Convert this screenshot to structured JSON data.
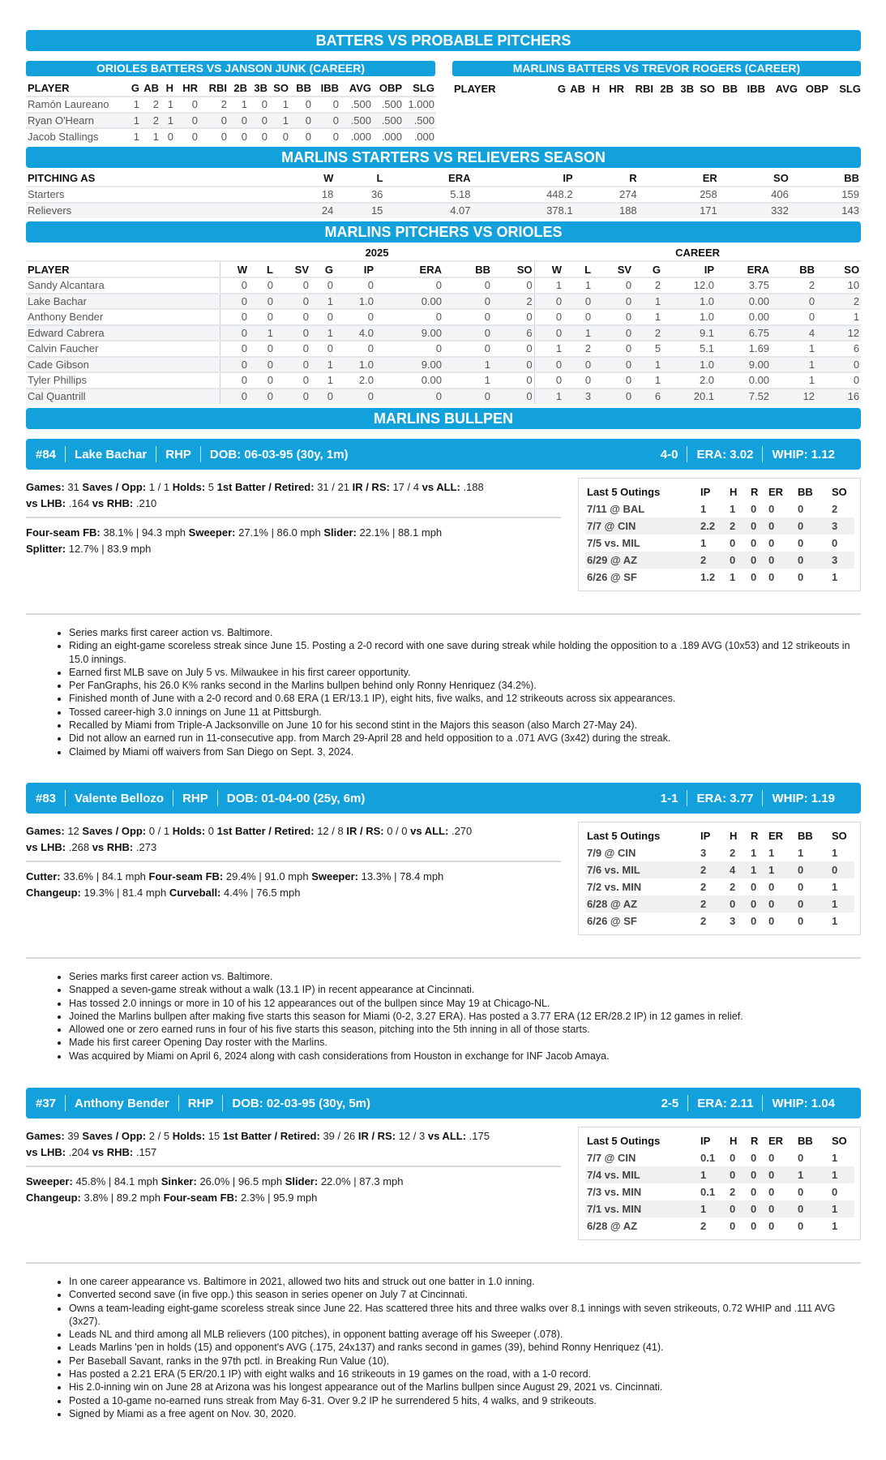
{
  "batters_vs_probables": {
    "title": "BATTERS VS PROBABLE PITCHERS",
    "orioles": {
      "title": "ORIOLES BATTERS VS JANSON JUNK (CAREER)",
      "columns": [
        "PLAYER",
        "G",
        "AB",
        "H",
        "HR",
        "RBI",
        "2B",
        "3B",
        "SO",
        "BB",
        "IBB",
        "AVG",
        "OBP",
        "SLG"
      ],
      "rows": [
        [
          "Ramón Laureano",
          "1",
          "2",
          "1",
          "0",
          "2",
          "1",
          "0",
          "1",
          "0",
          "0",
          ".500",
          ".500",
          "1.000"
        ],
        [
          "Ryan O'Hearn",
          "1",
          "2",
          "1",
          "0",
          "0",
          "0",
          "0",
          "1",
          "0",
          "0",
          ".500",
          ".500",
          ".500"
        ],
        [
          "Jacob Stallings",
          "1",
          "1",
          "0",
          "0",
          "0",
          "0",
          "0",
          "0",
          "0",
          "0",
          ".000",
          ".000",
          ".000"
        ]
      ]
    },
    "marlins": {
      "title": "MARLINS BATTERS VS TREVOR ROGERS (CAREER)",
      "columns": [
        "PLAYER",
        "G",
        "AB",
        "H",
        "HR",
        "RBI",
        "2B",
        "3B",
        "SO",
        "BB",
        "IBB",
        "AVG",
        "OBP",
        "SLG"
      ],
      "rows": []
    }
  },
  "starters_vs_relievers": {
    "title": "MARLINS STARTERS VS RELIEVERS SEASON",
    "columns": [
      "PITCHING AS",
      "W",
      "L",
      "ERA",
      "IP",
      "R",
      "ER",
      "SO",
      "BB"
    ],
    "rows": [
      [
        "Starters",
        "18",
        "36",
        "5.18",
        "448.2",
        "274",
        "258",
        "406",
        "159"
      ],
      [
        "Relievers",
        "24",
        "15",
        "4.07",
        "378.1",
        "188",
        "171",
        "332",
        "143"
      ]
    ]
  },
  "pitchers_vs_orioles": {
    "title": "MARLINS PITCHERS VS ORIOLES",
    "group_labels": [
      "2025",
      "CAREER"
    ],
    "columns": [
      "PLAYER",
      "W",
      "L",
      "SV",
      "G",
      "IP",
      "ERA",
      "BB",
      "SO",
      "W",
      "L",
      "SV",
      "G",
      "IP",
      "ERA",
      "BB",
      "SO"
    ],
    "rows": [
      [
        "Sandy Alcantara",
        "0",
        "0",
        "0",
        "0",
        "0",
        "0",
        "0",
        "0",
        "1",
        "1",
        "0",
        "2",
        "12.0",
        "3.75",
        "2",
        "10"
      ],
      [
        "Lake Bachar",
        "0",
        "0",
        "0",
        "1",
        "1.0",
        "0.00",
        "0",
        "2",
        "0",
        "0",
        "0",
        "1",
        "1.0",
        "0.00",
        "0",
        "2"
      ],
      [
        "Anthony Bender",
        "0",
        "0",
        "0",
        "0",
        "0",
        "0",
        "0",
        "0",
        "0",
        "0",
        "0",
        "1",
        "1.0",
        "0.00",
        "0",
        "1"
      ],
      [
        "Edward Cabrera",
        "0",
        "1",
        "0",
        "1",
        "4.0",
        "9.00",
        "0",
        "6",
        "0",
        "1",
        "0",
        "2",
        "9.1",
        "6.75",
        "4",
        "12"
      ],
      [
        "Calvin Faucher",
        "0",
        "0",
        "0",
        "0",
        "0",
        "0",
        "0",
        "0",
        "1",
        "2",
        "0",
        "5",
        "5.1",
        "1.69",
        "1",
        "6"
      ],
      [
        "Cade Gibson",
        "0",
        "0",
        "0",
        "1",
        "1.0",
        "9.00",
        "1",
        "0",
        "0",
        "0",
        "0",
        "1",
        "1.0",
        "9.00",
        "1",
        "0"
      ],
      [
        "Tyler Phillips",
        "0",
        "0",
        "0",
        "1",
        "2.0",
        "0.00",
        "1",
        "0",
        "0",
        "0",
        "0",
        "1",
        "2.0",
        "0.00",
        "1",
        "0"
      ],
      [
        "Cal Quantrill",
        "0",
        "0",
        "0",
        "0",
        "0",
        "0",
        "0",
        "0",
        "1",
        "3",
        "0",
        "6",
        "20.1",
        "7.52",
        "12",
        "16"
      ]
    ]
  },
  "bullpen": {
    "title": "MARLINS BULLPEN",
    "outing_columns": [
      "Last 5 Outings",
      "IP",
      "H",
      "R",
      "ER",
      "BB",
      "SO"
    ],
    "pitchers": [
      {
        "number": "#84",
        "name": "Lake Bachar",
        "throws": "RHP",
        "dob": "DOB: 06-03-95 (30y, 1m)",
        "record": "4-0",
        "era": "ERA: 3.02",
        "whip": "WHIP: 1.12",
        "stat_lines": [
          [
            {
              "label": "Games:",
              "value": "31"
            },
            {
              "label": "Saves / Opp:",
              "value": "1 / 1"
            },
            {
              "label": "Holds:",
              "value": "5"
            },
            {
              "label": "1st Batter / Retired:",
              "value": "31 / 21"
            },
            {
              "label": "IR / RS:",
              "value": "17 / 4"
            },
            {
              "label": "vs ALL:",
              "value": ".188"
            }
          ],
          [
            {
              "label": "vs LHB:",
              "value": ".164"
            },
            {
              "label": "vs RHB:",
              "value": ".210"
            }
          ]
        ],
        "pitch_lines": [
          [
            {
              "label": "Four-seam FB:",
              "value": "38.1% | 94.3 mph"
            },
            {
              "label": "Sweeper:",
              "value": "27.1% | 86.0 mph"
            },
            {
              "label": "Slider:",
              "value": "22.1% | 88.1 mph"
            }
          ],
          [
            {
              "label": "Splitter:",
              "value": "12.7% | 83.9 mph"
            }
          ]
        ],
        "outings": [
          [
            "7/11 @ BAL",
            "1",
            "1",
            "0",
            "0",
            "0",
            "2"
          ],
          [
            "7/7 @ CIN",
            "2.2",
            "2",
            "0",
            "0",
            "0",
            "3"
          ],
          [
            "7/5 vs. MIL",
            "1",
            "0",
            "0",
            "0",
            "0",
            "0"
          ],
          [
            "6/29 @ AZ",
            "2",
            "0",
            "0",
            "0",
            "0",
            "3"
          ],
          [
            "6/26 @ SF",
            "1.2",
            "1",
            "0",
            "0",
            "0",
            "1"
          ]
        ],
        "notes": [
          "Series marks first career action vs. Baltimore.",
          "Riding an eight-game scoreless streak since June 15. Posting a 2-0 record with one save during streak while holding the opposition to a .189 AVG (10x53) and 12 strikeouts in 15.0 innings.",
          "Earned first MLB save on July 5 vs. Milwaukee in his first career opportunity.",
          "Per FanGraphs, his 26.0 K% ranks second in the Marlins bullpen behind only Ronny Henriquez (34.2%).",
          "Finished month of June with a 2-0 record and 0.68 ERA (1 ER/13.1 IP), eight hits, five walks, and 12 strikeouts across six appearances.",
          "Tossed career-high 3.0 innings on June 11 at Pittsburgh.",
          "Recalled by Miami from Triple-A Jacksonville on June 10 for his second stint in the Majors this season (also March 27-May 24).",
          "Did not allow an earned run in 11-consecutive app. from March 29-April 28 and held opposition to a .071 AVG (3x42) during the streak.",
          "Claimed by Miami off waivers from San Diego on Sept. 3, 2024."
        ]
      },
      {
        "number": "#83",
        "name": "Valente Bellozo",
        "throws": "RHP",
        "dob": "DOB: 01-04-00 (25y, 6m)",
        "record": "1-1",
        "era": "ERA: 3.77",
        "whip": "WHIP: 1.19",
        "stat_lines": [
          [
            {
              "label": "Games:",
              "value": "12"
            },
            {
              "label": "Saves / Opp:",
              "value": "0 / 1"
            },
            {
              "label": "Holds:",
              "value": "0"
            },
            {
              "label": "1st Batter / Retired:",
              "value": "12 / 8"
            },
            {
              "label": "IR / RS:",
              "value": "0 / 0"
            },
            {
              "label": "vs ALL:",
              "value": ".270"
            }
          ],
          [
            {
              "label": "vs LHB:",
              "value": ".268"
            },
            {
              "label": "vs RHB:",
              "value": ".273"
            }
          ]
        ],
        "pitch_lines": [
          [
            {
              "label": "Cutter:",
              "value": "33.6% | 84.1 mph"
            },
            {
              "label": "Four-seam FB:",
              "value": "29.4% | 91.0 mph"
            },
            {
              "label": "Sweeper:",
              "value": "13.3% | 78.4 mph"
            }
          ],
          [
            {
              "label": "Changeup:",
              "value": "19.3% | 81.4 mph"
            },
            {
              "label": "Curveball:",
              "value": "4.4% | 76.5 mph"
            }
          ]
        ],
        "outings": [
          [
            "7/9 @ CIN",
            "3",
            "2",
            "1",
            "1",
            "1",
            "1"
          ],
          [
            "7/6 vs. MIL",
            "2",
            "4",
            "1",
            "1",
            "0",
            "0"
          ],
          [
            "7/2 vs. MIN",
            "2",
            "2",
            "0",
            "0",
            "0",
            "1"
          ],
          [
            "6/28 @ AZ",
            "2",
            "0",
            "0",
            "0",
            "0",
            "1"
          ],
          [
            "6/26 @ SF",
            "2",
            "3",
            "0",
            "0",
            "0",
            "1"
          ]
        ],
        "notes": [
          "Series marks first career action vs. Baltimore.",
          "Snapped a seven-game streak without a walk (13.1 IP) in recent appearance at Cincinnati.",
          "Has tossed 2.0 innings or more in 10 of his 12 appearances out of the bullpen since May 19 at Chicago-NL.",
          "Joined the Marlins bullpen after making five starts this season for Miami (0-2, 3.27 ERA). Has posted a 3.77 ERA (12 ER/28.2 IP) in 12 games in relief.",
          "Allowed one or zero earned runs in four of his five starts this season, pitching into the 5th inning in all of those starts.",
          "Made his first career Opening Day roster with the Marlins.",
          "Was acquired by Miami on April 6, 2024 along with cash considerations from Houston in exchange for INF Jacob Amaya."
        ]
      },
      {
        "number": "#37",
        "name": "Anthony Bender",
        "throws": "RHP",
        "dob": "DOB: 02-03-95 (30y, 5m)",
        "record": "2-5",
        "era": "ERA: 2.11",
        "whip": "WHIP: 1.04",
        "stat_lines": [
          [
            {
              "label": "Games:",
              "value": "39"
            },
            {
              "label": "Saves / Opp:",
              "value": "2 / 5"
            },
            {
              "label": "Holds:",
              "value": "15"
            },
            {
              "label": "1st Batter / Retired:",
              "value": "39 / 26"
            },
            {
              "label": "IR / RS:",
              "value": "12 / 3"
            },
            {
              "label": "vs ALL:",
              "value": ".175"
            }
          ],
          [
            {
              "label": "vs LHB:",
              "value": ".204"
            },
            {
              "label": "vs RHB:",
              "value": ".157"
            }
          ]
        ],
        "pitch_lines": [
          [
            {
              "label": "Sweeper:",
              "value": "45.8% | 84.1 mph"
            },
            {
              "label": "Sinker:",
              "value": "26.0% | 96.5 mph"
            },
            {
              "label": "Slider:",
              "value": "22.0% | 87.3 mph"
            }
          ],
          [
            {
              "label": "Changeup:",
              "value": "3.8% | 89.2 mph"
            },
            {
              "label": "Four-seam FB:",
              "value": "2.3% | 95.9 mph"
            }
          ]
        ],
        "outings": [
          [
            "7/7 @ CIN",
            "0.1",
            "0",
            "0",
            "0",
            "0",
            "1"
          ],
          [
            "7/4 vs. MIL",
            "1",
            "0",
            "0",
            "0",
            "1",
            "1"
          ],
          [
            "7/3 vs. MIN",
            "0.1",
            "2",
            "0",
            "0",
            "0",
            "0"
          ],
          [
            "7/1 vs. MIN",
            "1",
            "0",
            "0",
            "0",
            "0",
            "1"
          ],
          [
            "6/28 @ AZ",
            "2",
            "0",
            "0",
            "0",
            "0",
            "1"
          ]
        ],
        "notes": [
          "In one career appearance vs. Baltimore in 2021, allowed two hits and struck out one batter in 1.0 inning.",
          "Converted second save (in five opp.) this season in series opener on July 7 at Cincinnati.",
          "Owns a team-leading eight-game scoreless streak since June 22. Has scattered three hits and three walks over 8.1 innings with seven strikeouts, 0.72 WHIP and .111 AVG (3x27).",
          "Leads NL and third among all MLB relievers (100 pitches), in opponent batting average off his Sweeper (.078).",
          "Leads Marlins 'pen in holds (15) and opponent's AVG (.175, 24x137) and ranks second in games (39), behind Ronny Henriquez (41).",
          "Per Baseball Savant, ranks in the 97th pctl. in Breaking Run Value (10).",
          "Has posted a 2.21 ERA (5 ER/20.1 IP) with eight walks and 16 strikeouts in 19 games on the road, with a 1-0 record.",
          "His 2.0-inning win on June 28 at Arizona was his longest appearance out of the Marlins bullpen since August 29, 2021 vs. Cincinnati.",
          "Posted a 10-game no-earned runs streak from May 6-31. Over 9.2 IP he surrendered 5 hits, 4 walks, and 9 strikeouts.",
          "Signed by Miami as a free agent on Nov. 30, 2020."
        ]
      }
    ]
  },
  "colors": {
    "accent": "#13a1dc",
    "row_stripe": "#f3f4f5"
  }
}
